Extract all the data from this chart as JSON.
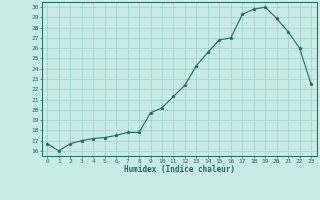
{
  "x": [
    0,
    1,
    2,
    3,
    4,
    5,
    6,
    7,
    8,
    9,
    10,
    11,
    12,
    13,
    14,
    15,
    16,
    17,
    18,
    19,
    20,
    21,
    22,
    23
  ],
  "y": [
    16.7,
    16.0,
    16.7,
    17.0,
    17.2,
    17.3,
    17.5,
    17.8,
    17.8,
    19.7,
    20.2,
    21.3,
    22.4,
    24.3,
    25.6,
    26.8,
    27.0,
    29.3,
    29.8,
    30.0,
    28.9,
    27.6,
    26.0,
    22.5
  ],
  "xlabel": "Humidex (Indice chaleur)",
  "line_color": "#1a6b5c",
  "marker_color": "#1a6b5c",
  "bg_color": "#c8ebe8",
  "grid_color": "#a0cfc9",
  "axis_color": "#1a6b5c",
  "ylim": [
    15.5,
    30.5
  ],
  "xlim": [
    -0.5,
    23.5
  ],
  "yticks": [
    16,
    17,
    18,
    19,
    20,
    21,
    22,
    23,
    24,
    25,
    26,
    27,
    28,
    29,
    30
  ],
  "xticks": [
    0,
    1,
    2,
    3,
    4,
    5,
    6,
    7,
    8,
    9,
    10,
    11,
    12,
    13,
    14,
    15,
    16,
    17,
    18,
    19,
    20,
    21,
    22,
    23
  ]
}
